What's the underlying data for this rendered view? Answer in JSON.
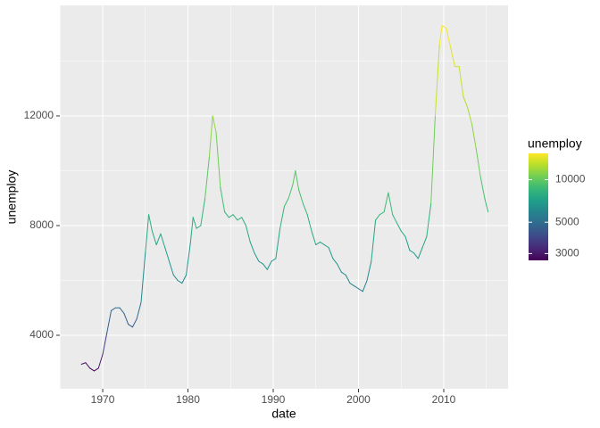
{
  "chart_data": {
    "type": "line",
    "x_label": "date",
    "y_label": "unemploy",
    "legend_title": "unemploy",
    "x": [
      1967.5,
      1968.0,
      1968.5,
      1969.0,
      1969.5,
      1970.0,
      1970.5,
      1971.0,
      1971.5,
      1972.0,
      1972.5,
      1973.0,
      1973.5,
      1974.0,
      1974.5,
      1975.0,
      1975.4,
      1975.8,
      1976.3,
      1976.8,
      1977.3,
      1977.8,
      1978.3,
      1978.8,
      1979.3,
      1979.8,
      1980.3,
      1980.6,
      1981.0,
      1981.5,
      1982.0,
      1982.5,
      1982.9,
      1983.3,
      1983.8,
      1984.3,
      1984.8,
      1985.3,
      1985.8,
      1986.3,
      1986.8,
      1987.3,
      1987.8,
      1988.3,
      1988.8,
      1989.3,
      1989.8,
      1990.3,
      1990.8,
      1991.3,
      1991.8,
      1992.3,
      1992.6,
      1993.0,
      1993.5,
      1994.0,
      1994.5,
      1995.0,
      1995.5,
      1996.0,
      1996.5,
      1997.0,
      1997.5,
      1998.0,
      1998.5,
      1999.0,
      1999.5,
      2000.0,
      2000.5,
      2001.0,
      2001.5,
      2002.0,
      2002.5,
      2003.0,
      2003.5,
      2004.0,
      2004.5,
      2005.0,
      2005.5,
      2006.0,
      2006.5,
      2007.0,
      2007.5,
      2008.0,
      2008.5,
      2009.0,
      2009.5,
      2009.8,
      2010.3,
      2010.8,
      2011.3,
      2011.8,
      2012.3,
      2012.8,
      2013.3,
      2013.8,
      2014.3,
      2014.8,
      2015.2
    ],
    "values": [
      2944,
      3000,
      2800,
      2700,
      2800,
      3300,
      4100,
      4900,
      5000,
      5000,
      4800,
      4400,
      4300,
      4600,
      5200,
      7000,
      8400,
      7800,
      7300,
      7700,
      7200,
      6700,
      6200,
      6000,
      5900,
      6200,
      7400,
      8300,
      7900,
      8000,
      9000,
      10500,
      12000,
      11400,
      9400,
      8500,
      8300,
      8400,
      8200,
      8300,
      8000,
      7400,
      7000,
      6700,
      6600,
      6400,
      6700,
      6800,
      7900,
      8700,
      9000,
      9500,
      10000,
      9300,
      8800,
      8400,
      7800,
      7300,
      7400,
      7300,
      7200,
      6800,
      6600,
      6300,
      6200,
      5900,
      5800,
      5700,
      5600,
      6000,
      6700,
      8200,
      8400,
      8500,
      9200,
      8400,
      8100,
      7800,
      7600,
      7100,
      7000,
      6800,
      7200,
      7600,
      8800,
      12000,
      14600,
      15300,
      15200,
      14500,
      13800,
      13800,
      12700,
      12300,
      11700,
      10800,
      9800,
      9000,
      8500
    ],
    "xlim": [
      1964.97,
      2017.54
    ],
    "xticks": [
      1970,
      1980,
      1990,
      2000,
      2010
    ],
    "ylim": [
      2049,
      16033
    ],
    "yticks": [
      4000,
      8000,
      12000
    ],
    "grid": true,
    "color_scale": "log",
    "color_lim": [
      2685,
      15352
    ],
    "color_ticks": [
      3000,
      5000,
      10000
    ],
    "colormap": [
      "#440154",
      "#482878",
      "#3e4989",
      "#31688e",
      "#26828e",
      "#1f9e89",
      "#35b779",
      "#6ece58",
      "#b5de2b",
      "#fde725"
    ]
  }
}
